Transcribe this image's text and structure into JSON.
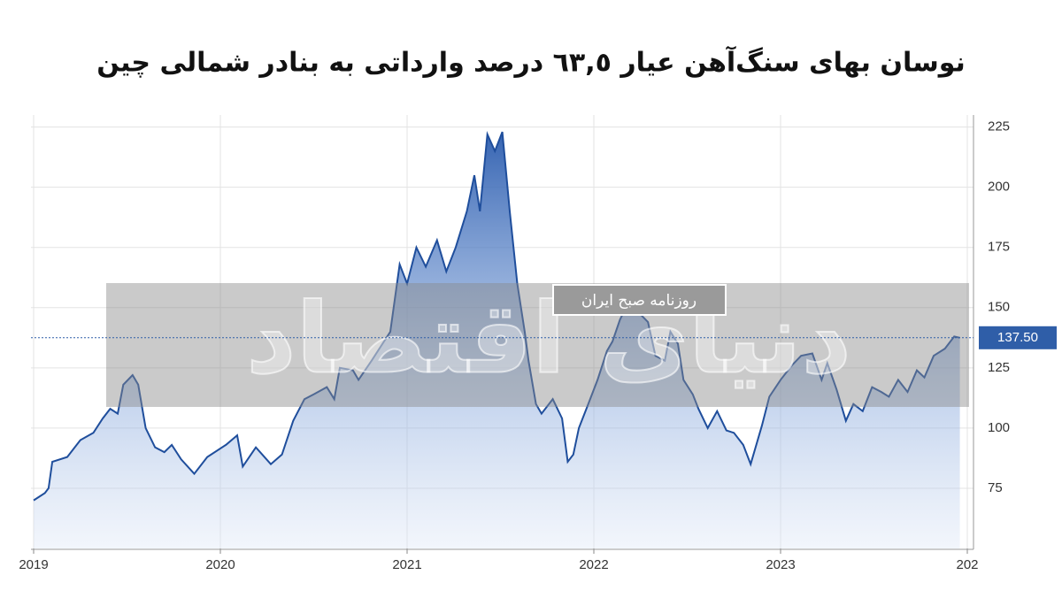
{
  "chart_data": {
    "type": "area",
    "title": "نوسان بهای سنگ‌آهن عیار ٦٣,٥ درصد وارداتی به بنادر شمالی چین",
    "watermark": "دنیای اقتصاد",
    "watermark_subtitle": "روزنامه صبح ایران",
    "x": [
      2019.0,
      2019.06,
      2019.08,
      2019.1,
      2019.18,
      2019.25,
      2019.32,
      2019.37,
      2019.41,
      2019.45,
      2019.48,
      2019.53,
      2019.56,
      2019.6,
      2019.65,
      2019.7,
      2019.74,
      2019.79,
      2019.86,
      2019.93,
      2020.03,
      2020.09,
      2020.12,
      2020.19,
      2020.27,
      2020.33,
      2020.39,
      2020.45,
      2020.5,
      2020.57,
      2020.61,
      2020.64,
      2020.71,
      2020.74,
      2020.81,
      2020.91,
      2020.96,
      2021.0,
      2021.05,
      2021.1,
      2021.16,
      2021.21,
      2021.26,
      2021.32,
      2021.36,
      2021.39,
      2021.43,
      2021.47,
      2021.51,
      2021.55,
      2021.59,
      2021.63,
      2021.65,
      2021.69,
      2021.72,
      2021.78,
      2021.83,
      2021.86,
      2021.89,
      2021.92,
      2021.97,
      2022.02,
      2022.07,
      2022.1,
      2022.14,
      2022.19,
      2022.24,
      2022.29,
      2022.33,
      2022.38,
      2022.41,
      2022.45,
      2022.48,
      2022.53,
      2022.56,
      2022.61,
      2022.66,
      2022.71,
      2022.75,
      2022.8,
      2022.84,
      2022.9,
      2022.94,
      2023.0,
      2023.06,
      2023.11,
      2023.17,
      2023.22,
      2023.25,
      2023.3,
      2023.35,
      2023.39,
      2023.44,
      2023.49,
      2023.54,
      2023.58,
      2023.63,
      2023.68,
      2023.73,
      2023.77,
      2023.82,
      2023.88,
      2023.93,
      2023.96
    ],
    "values": [
      70,
      73,
      75,
      86,
      88,
      95,
      98,
      104,
      108,
      106,
      118,
      122,
      118,
      100,
      92,
      90,
      93,
      87,
      81,
      88,
      93,
      97,
      84,
      92,
      85,
      89,
      103,
      112,
      114,
      117,
      112,
      125,
      124,
      120,
      128,
      140,
      168,
      160,
      175,
      167,
      178,
      165,
      175,
      190,
      205,
      190,
      222,
      215,
      223,
      190,
      160,
      140,
      128,
      110,
      106,
      112,
      104,
      86,
      89,
      100,
      110,
      120,
      132,
      136,
      145,
      153,
      148,
      144,
      130,
      128,
      140,
      135,
      120,
      114,
      108,
      100,
      107,
      99,
      98,
      93,
      85,
      101,
      113,
      120,
      126,
      130,
      131,
      120,
      127,
      116,
      103,
      110,
      107,
      117,
      115,
      113,
      120,
      115,
      124,
      121,
      130,
      133,
      138,
      137.5
    ],
    "color": "#1f4e9c",
    "current": {
      "value": 137.5,
      "label": "137.50"
    },
    "xlim": [
      2019,
      2024
    ],
    "xticks": [
      2019,
      2020,
      2021,
      2022,
      2023,
      {
        "value": 2024,
        "label": "202"
      }
    ],
    "ylim": [
      50,
      230
    ],
    "yticks": [
      75,
      100,
      125,
      150,
      175,
      200,
      225
    ],
    "grid": true
  }
}
